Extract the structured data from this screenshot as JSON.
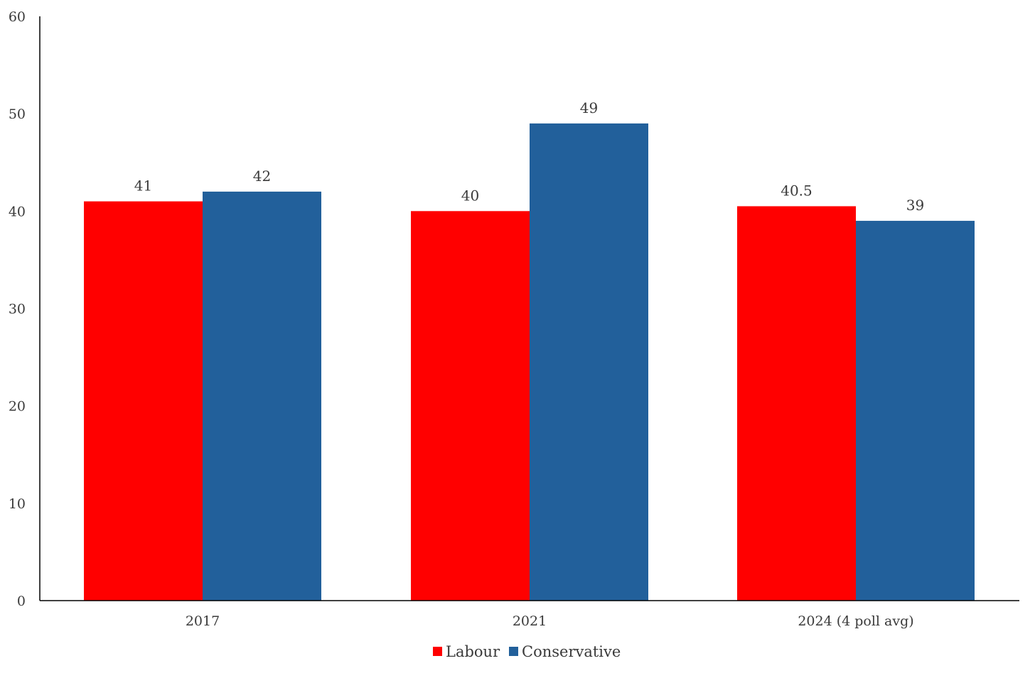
{
  "chart_data": {
    "type": "bar",
    "title": "",
    "xlabel": "",
    "ylabel": "",
    "categories": [
      "2017",
      "2021",
      "2024 (4 poll avg)"
    ],
    "series": [
      {
        "name": "Labour",
        "color": "#ff0000",
        "values": [
          41,
          40,
          40.5
        ]
      },
      {
        "name": "Conservative",
        "color": "#22609b",
        "values": [
          42,
          49,
          39
        ]
      }
    ],
    "data_labels": [
      [
        "41",
        "42"
      ],
      [
        "40",
        "49"
      ],
      [
        "40.5",
        "39"
      ]
    ],
    "ylim": [
      0,
      60
    ],
    "yticks": [
      0,
      10,
      20,
      30,
      40,
      50,
      60
    ],
    "grid": false,
    "legend_position": "bottom-center"
  }
}
